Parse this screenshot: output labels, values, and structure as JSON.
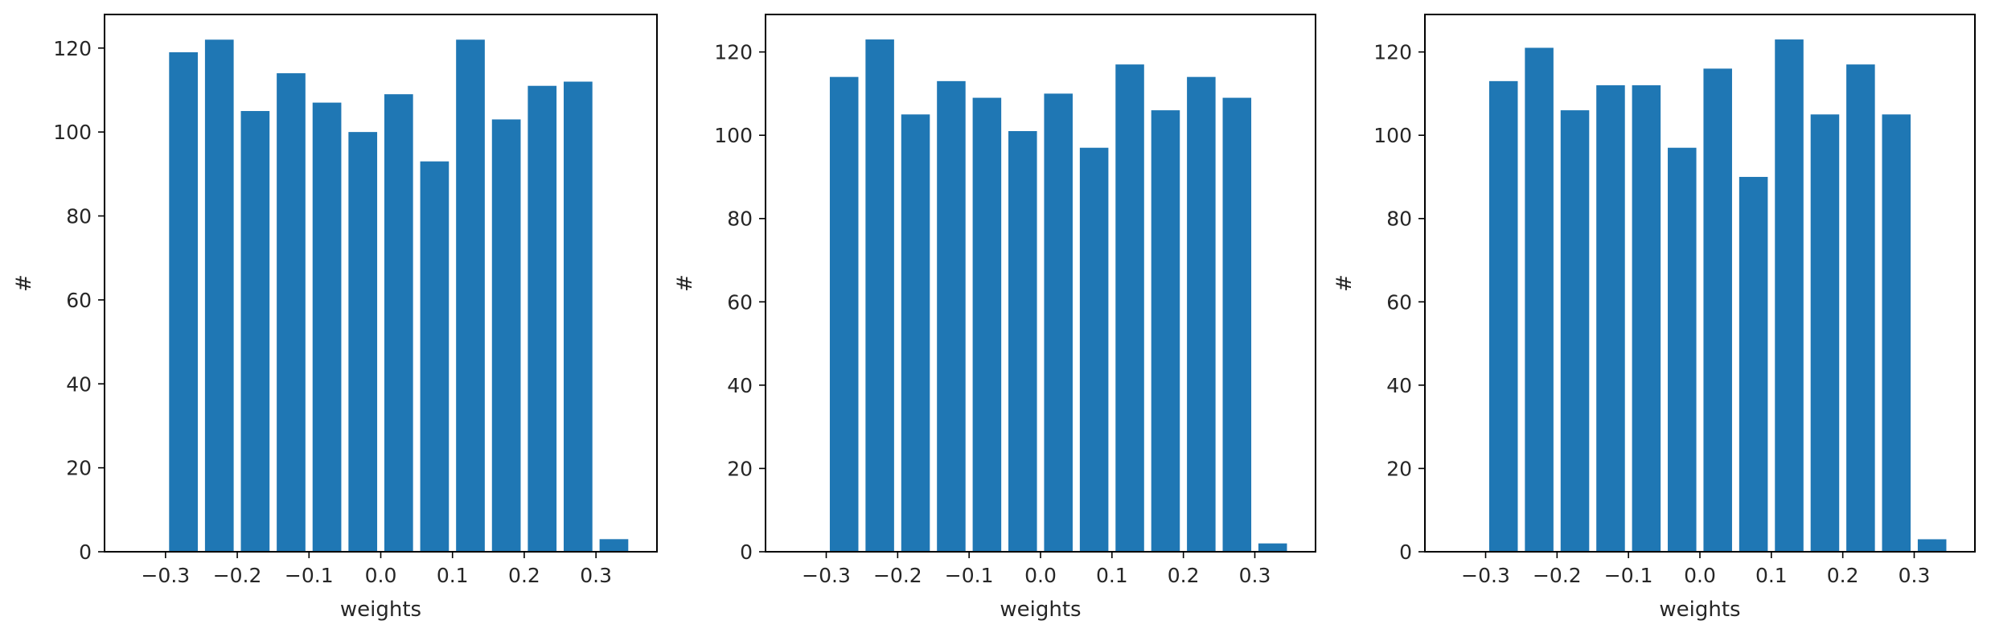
{
  "chart_data": [
    {
      "type": "bar",
      "x": [
        -0.275,
        -0.225,
        -0.175,
        -0.125,
        -0.075,
        -0.025,
        0.025,
        0.075,
        0.125,
        0.175,
        0.225,
        0.275,
        0.325
      ],
      "values": [
        119,
        122,
        105,
        114,
        107,
        100,
        109,
        93,
        122,
        103,
        111,
        112,
        3
      ],
      "xlabel": "weights",
      "ylabel": "#",
      "xlim": [
        -0.385,
        0.385
      ],
      "ylim": [
        0,
        128
      ],
      "xticks": [
        -0.3,
        -0.2,
        -0.1,
        0.0,
        0.1,
        0.2,
        0.3
      ],
      "xtick_labels": [
        "−0.3",
        "−0.2",
        "−0.1",
        "0.0",
        "0.1",
        "0.2",
        "0.3"
      ],
      "yticks": [
        0,
        20,
        40,
        60,
        80,
        100,
        120
      ],
      "ytick_labels": [
        "0",
        "20",
        "40",
        "60",
        "80",
        "100",
        "120"
      ],
      "bar_color": "#1f77b4",
      "grid": false
    },
    {
      "type": "bar",
      "x": [
        -0.275,
        -0.225,
        -0.175,
        -0.125,
        -0.075,
        -0.025,
        0.025,
        0.075,
        0.125,
        0.175,
        0.225,
        0.275,
        0.325
      ],
      "values": [
        114,
        123,
        105,
        113,
        109,
        101,
        110,
        97,
        117,
        106,
        114,
        109,
        2
      ],
      "xlabel": "weights",
      "ylabel": "#",
      "xlim": [
        -0.385,
        0.385
      ],
      "ylim": [
        0,
        129
      ],
      "xticks": [
        -0.3,
        -0.2,
        -0.1,
        0.0,
        0.1,
        0.2,
        0.3
      ],
      "xtick_labels": [
        "−0.3",
        "−0.2",
        "−0.1",
        "0.0",
        "0.1",
        "0.2",
        "0.3"
      ],
      "yticks": [
        0,
        20,
        40,
        60,
        80,
        100,
        120
      ],
      "ytick_labels": [
        "0",
        "20",
        "40",
        "60",
        "80",
        "100",
        "120"
      ],
      "bar_color": "#1f77b4",
      "grid": false
    },
    {
      "type": "bar",
      "x": [
        -0.275,
        -0.225,
        -0.175,
        -0.125,
        -0.075,
        -0.025,
        0.025,
        0.075,
        0.125,
        0.175,
        0.225,
        0.275,
        0.325
      ],
      "values": [
        113,
        121,
        106,
        112,
        112,
        97,
        116,
        90,
        123,
        105,
        117,
        105,
        3
      ],
      "xlabel": "weights",
      "ylabel": "#",
      "xlim": [
        -0.385,
        0.385
      ],
      "ylim": [
        0,
        129
      ],
      "xticks": [
        -0.3,
        -0.2,
        -0.1,
        0.0,
        0.1,
        0.2,
        0.3
      ],
      "xtick_labels": [
        "−0.3",
        "−0.2",
        "−0.1",
        "0.0",
        "0.1",
        "0.2",
        "0.3"
      ],
      "yticks": [
        0,
        20,
        40,
        60,
        80,
        100,
        120
      ],
      "ytick_labels": [
        "0",
        "20",
        "40",
        "60",
        "80",
        "100",
        "120"
      ],
      "bar_color": "#1f77b4",
      "grid": false
    }
  ]
}
